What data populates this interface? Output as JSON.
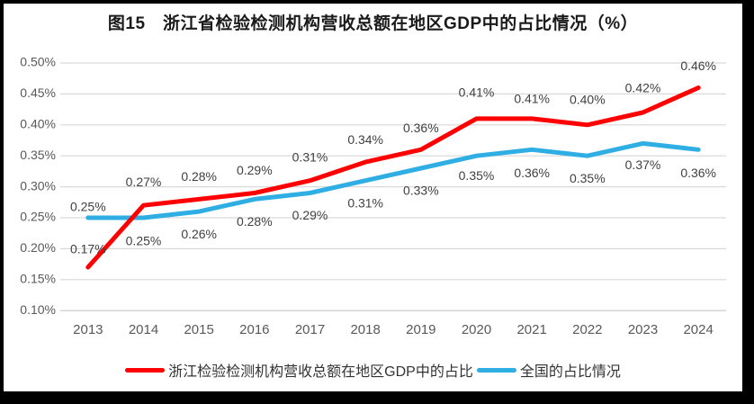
{
  "window": {
    "frame_color": "#000000",
    "canvas_color": "#ffffff"
  },
  "chart_data": {
    "type": "line",
    "title": "图15　浙江省检验检测机构营收总额在地区GDP中的占比情况（%）",
    "categories": [
      "2013",
      "2014",
      "2015",
      "2016",
      "2017",
      "2018",
      "2019",
      "2020",
      "2021",
      "2022",
      "2023",
      "2024"
    ],
    "y_axis": {
      "min": 0.1,
      "max": 0.5,
      "step": 0.05,
      "unit": "%",
      "tick_labels": [
        "0.50%",
        "0.45%",
        "0.40%",
        "0.35%",
        "0.30%",
        "0.25%",
        "0.20%",
        "0.15%",
        "0.10%"
      ]
    },
    "grid": true,
    "legend_position": "bottom",
    "series": [
      {
        "name": "浙江检验检测机构营收总额在地区GDP中的占比",
        "color": "#fe0000",
        "values": [
          0.17,
          0.27,
          0.28,
          0.29,
          0.31,
          0.34,
          0.36,
          0.41,
          0.41,
          0.4,
          0.42,
          0.46
        ],
        "labels": [
          "0.17%",
          "0.27%",
          "0.28%",
          "0.29%",
          "0.31%",
          "0.34%",
          "0.36%",
          "0.41%",
          "0.41%",
          "0.40%",
          "0.42%",
          "0.46%"
        ],
        "label_dy": [
          -19,
          -25,
          -24,
          -24,
          -25,
          -24,
          -23,
          -28,
          -21,
          -27,
          -26,
          -23
        ]
      },
      {
        "name": "全国的占比情况",
        "color": "#2faee3",
        "values": [
          0.25,
          0.25,
          0.26,
          0.28,
          0.29,
          0.31,
          0.33,
          0.35,
          0.36,
          0.35,
          0.37,
          0.36
        ],
        "labels": [
          "0.25%",
          "0.25%",
          "0.26%",
          "0.28%",
          "0.29%",
          "0.31%",
          "0.33%",
          "0.35%",
          "0.36%",
          "0.35%",
          "0.37%",
          "0.36%"
        ],
        "label_dy": [
          -11,
          27,
          26,
          26,
          26,
          26,
          26,
          23,
          27,
          26,
          25,
          27
        ]
      }
    ],
    "style": {
      "gridline_color": "#d9d9d9",
      "baseline_color": "#c6c6c6",
      "axis_text_color": "#595959",
      "data_label_color": "#404040",
      "line_width": 5
    }
  }
}
